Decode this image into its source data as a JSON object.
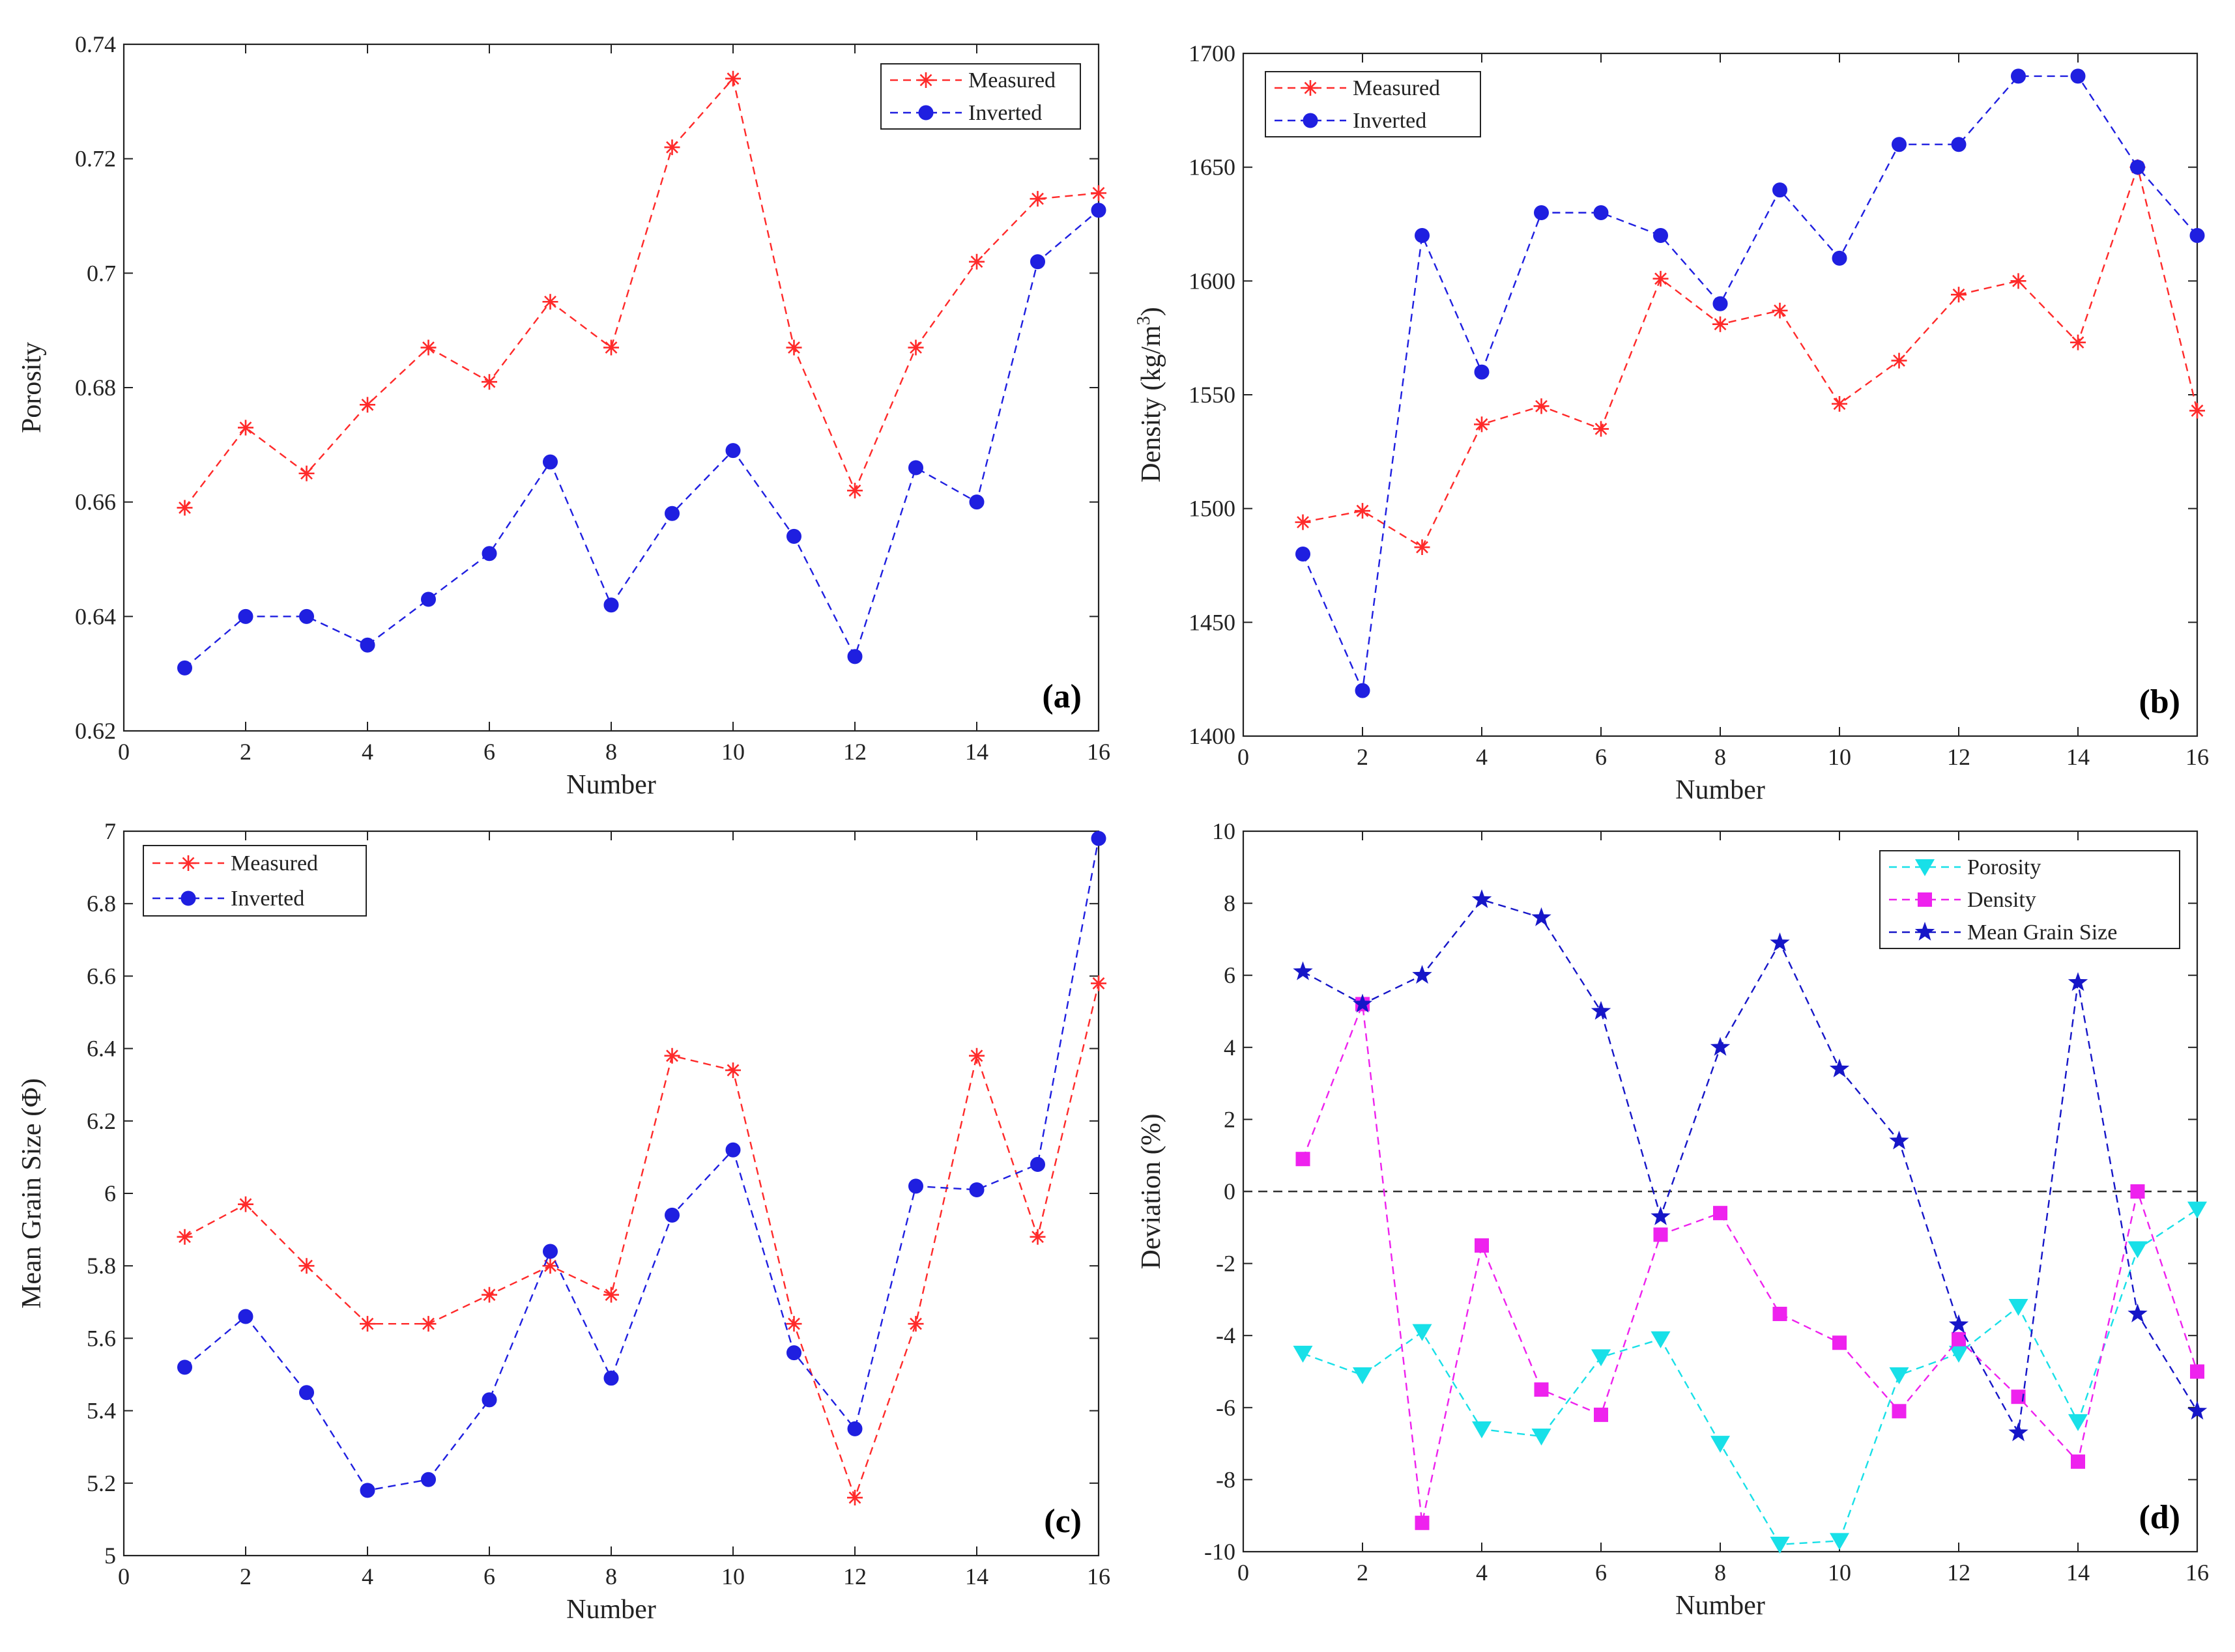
{
  "chart_data": [
    {
      "type": "line",
      "panel_label": "(a)",
      "xlabel": "Number",
      "ylabel": "Porosity",
      "xlim": [
        0,
        16
      ],
      "ylim": [
        0.62,
        0.74
      ],
      "xticks": [
        0,
        2,
        4,
        6,
        8,
        10,
        12,
        14,
        16
      ],
      "yticks": [
        "0.62",
        "0.64",
        "0.66",
        "0.68",
        "0.7",
        "0.72",
        "0.74"
      ],
      "legend_position": "top-right",
      "x": [
        1,
        2,
        3,
        4,
        5,
        6,
        7,
        8,
        9,
        10,
        11,
        12,
        13,
        14,
        15,
        16
      ],
      "series": [
        {
          "name": "Measured",
          "color": "#ff2a2a",
          "marker": "asterisk",
          "values": [
            0.659,
            0.673,
            0.665,
            0.677,
            0.687,
            0.681,
            0.695,
            0.687,
            0.722,
            0.734,
            0.687,
            0.662,
            0.687,
            0.702,
            0.713,
            0.714
          ]
        },
        {
          "name": "Inverted",
          "color": "#1f1fe0",
          "marker": "circle",
          "values": [
            0.631,
            0.64,
            0.64,
            0.635,
            0.643,
            0.651,
            0.667,
            0.642,
            0.658,
            0.669,
            0.654,
            0.633,
            0.666,
            0.66,
            0.702,
            0.711
          ]
        }
      ]
    },
    {
      "type": "line",
      "panel_label": "(b)",
      "xlabel": "Number",
      "ylabel": "Density (kg/m",
      "ylabel_superscript": "3",
      "ylabel_suffix": ")",
      "xlim": [
        0,
        16
      ],
      "ylim": [
        1400,
        1700
      ],
      "xticks": [
        0,
        2,
        4,
        6,
        8,
        10,
        12,
        14,
        16
      ],
      "yticks": [
        "1400",
        "1450",
        "1500",
        "1550",
        "1600",
        "1650",
        "1700"
      ],
      "legend_position": "top-left",
      "x": [
        1,
        2,
        3,
        4,
        5,
        6,
        7,
        8,
        9,
        10,
        11,
        12,
        13,
        14,
        15,
        16
      ],
      "series": [
        {
          "name": "Measured",
          "color": "#ff2a2a",
          "marker": "asterisk",
          "values": [
            1494,
            1499,
            1483,
            1537,
            1545,
            1535,
            1601,
            1581,
            1587,
            1546,
            1565,
            1594,
            1600,
            1573,
            1650,
            1543
          ]
        },
        {
          "name": "Inverted",
          "color": "#1f1fe0",
          "marker": "circle",
          "values": [
            1480,
            1420,
            1620,
            1560,
            1630,
            1630,
            1620,
            1590,
            1640,
            1610,
            1660,
            1660,
            1690,
            1690,
            1650,
            1620
          ]
        }
      ]
    },
    {
      "type": "line",
      "panel_label": "(c)",
      "xlabel": "Number",
      "ylabel": "Mean Grain Size (Φ)",
      "xlim": [
        0,
        16
      ],
      "ylim": [
        5,
        7
      ],
      "xticks": [
        0,
        2,
        4,
        6,
        8,
        10,
        12,
        14,
        16
      ],
      "yticks": [
        "5",
        "5.2",
        "5.4",
        "5.6",
        "5.8",
        "6",
        "6.2",
        "6.4",
        "6.6",
        "6.8",
        "7"
      ],
      "legend_position": "top-left",
      "x": [
        1,
        2,
        3,
        4,
        5,
        6,
        7,
        8,
        9,
        10,
        11,
        12,
        13,
        14,
        15,
        16
      ],
      "series": [
        {
          "name": "Measured",
          "color": "#ff2a2a",
          "marker": "asterisk",
          "values": [
            5.88,
            5.97,
            5.8,
            5.64,
            5.64,
            5.72,
            5.8,
            5.72,
            6.38,
            6.34,
            5.64,
            5.16,
            5.64,
            6.38,
            5.88,
            6.58
          ]
        },
        {
          "name": "Inverted",
          "color": "#1f1fe0",
          "marker": "circle",
          "values": [
            5.52,
            5.66,
            5.45,
            5.18,
            5.21,
            5.43,
            5.84,
            5.49,
            5.94,
            6.12,
            5.56,
            5.35,
            6.02,
            6.01,
            6.08,
            6.98
          ]
        }
      ]
    },
    {
      "type": "line",
      "panel_label": "(d)",
      "xlabel": "Number",
      "ylabel": "Deviation (%)",
      "xlim": [
        0,
        16
      ],
      "ylim": [
        -10,
        10
      ],
      "xticks": [
        0,
        2,
        4,
        6,
        8,
        10,
        12,
        14,
        16
      ],
      "yticks": [
        "-10",
        "-8",
        "-6",
        "-4",
        "-2",
        "0",
        "2",
        "4",
        "6",
        "8",
        "10"
      ],
      "legend_position": "top-right",
      "reference_line": 0,
      "x": [
        1,
        2,
        3,
        4,
        5,
        6,
        7,
        8,
        9,
        10,
        11,
        12,
        13,
        14,
        15,
        16
      ],
      "series": [
        {
          "name": "Porosity",
          "color": "#18e0e8",
          "marker": "triangle-down",
          "values": [
            -4.5,
            -5.1,
            -3.9,
            -6.6,
            -6.8,
            -4.6,
            -4.1,
            -7.0,
            -9.8,
            -9.7,
            -5.1,
            -4.5,
            -3.2,
            -6.4,
            -1.6,
            -0.5
          ]
        },
        {
          "name": "Density",
          "color": "#ee22ee",
          "marker": "square",
          "values": [
            0.9,
            5.2,
            -9.2,
            -1.5,
            -5.5,
            -6.2,
            -1.2,
            -0.6,
            -3.4,
            -4.2,
            -6.1,
            -4.1,
            -5.7,
            -7.5,
            0.0,
            -5.0
          ]
        },
        {
          "name": "Mean Grain Size",
          "color": "#1616c8",
          "marker": "star",
          "values": [
            6.1,
            5.2,
            6.0,
            8.1,
            7.6,
            5.0,
            -0.7,
            4.0,
            6.9,
            3.4,
            1.4,
            -3.7,
            -6.7,
            5.8,
            -3.4,
            -6.1
          ]
        }
      ]
    }
  ]
}
